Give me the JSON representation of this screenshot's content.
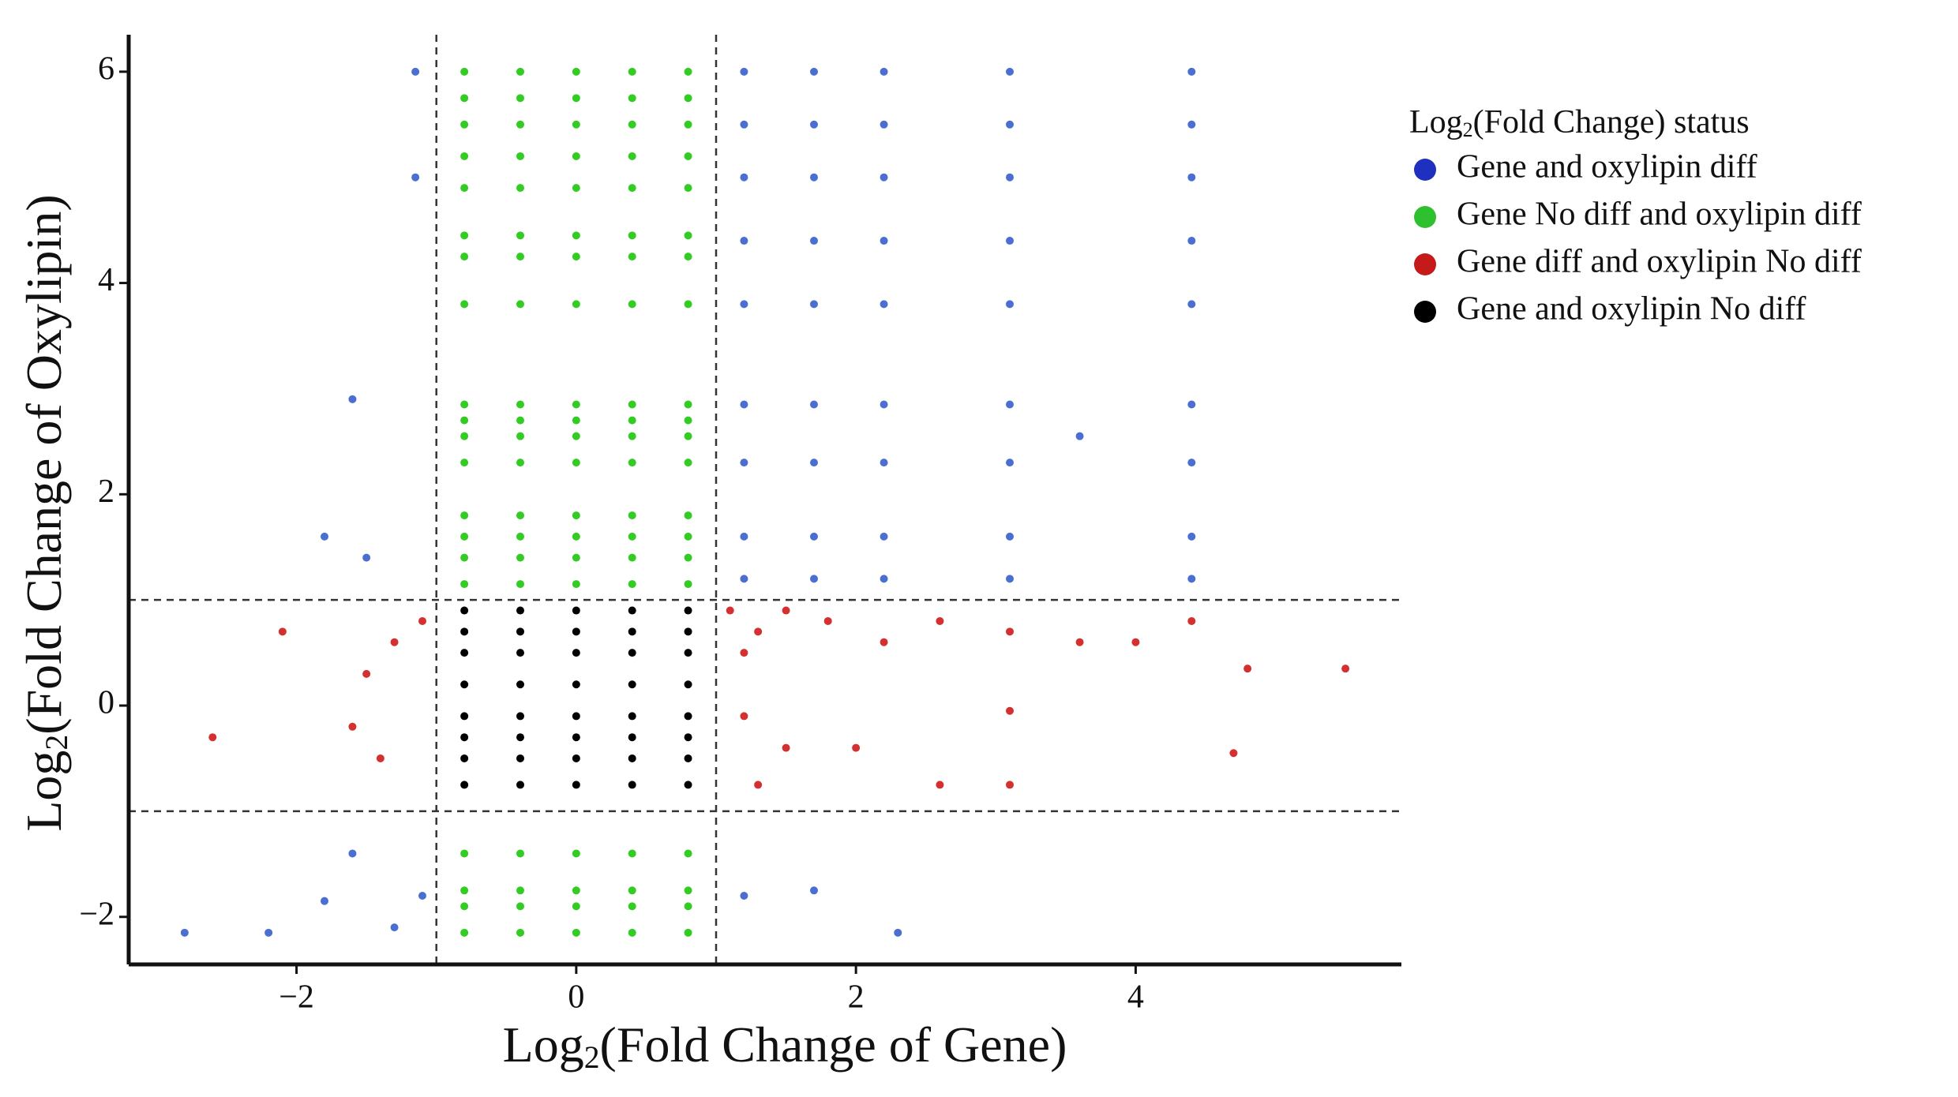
{
  "chart_data": {
    "type": "scatter",
    "xlabel": {
      "base": "Log",
      "sub": "2",
      "rest": "(Fold Change of Gene)"
    },
    "ylabel": {
      "base": "Log",
      "sub": "2",
      "rest": "(Fold Change of Oxylipin)"
    },
    "legend_title": {
      "base": "Log",
      "sub": "2",
      "rest": "(Fold Change) status"
    },
    "legend": "right",
    "grid": false,
    "xlim": [
      -3.2,
      5.9
    ],
    "ylim": [
      -2.45,
      6.35
    ],
    "xticks": [
      {
        "value": -2,
        "label": "−2"
      },
      0,
      2,
      4
    ],
    "yticks": [
      {
        "value": -2,
        "label": "−2"
      },
      0,
      2,
      4,
      6
    ],
    "reference_lines": {
      "x": [
        -1,
        1
      ],
      "y": [
        -1,
        1
      ]
    },
    "series": [
      {
        "name": "Gene and oxylipin diff",
        "color": "#1f2fbf",
        "point_color": "#4a6fd0",
        "x": [
          1.2,
          1.7,
          2.2,
          3.1,
          4.4,
          1.2,
          1.7,
          2.2,
          3.1,
          4.4,
          1.2,
          1.7,
          2.2,
          3.1,
          4.4,
          1.2,
          1.7,
          2.2,
          3.1,
          4.4,
          1.2,
          1.7,
          2.2,
          3.1,
          4.4,
          1.2,
          1.7,
          2.2,
          3.1,
          4.4,
          1.2,
          1.7,
          2.2,
          3.1,
          4.4,
          1.2,
          1.7,
          2.2,
          3.1,
          4.4,
          1.2,
          1.7,
          2.2,
          3.1,
          4.4,
          -1.15,
          -1.15,
          -1.6,
          -1.8,
          -1.5,
          -1.6,
          -2.8,
          -2.2,
          -1.8,
          -1.3,
          -1.1,
          1.2,
          1.7,
          2.3,
          3.6
        ],
        "y": [
          6,
          6,
          6,
          6,
          6,
          5.5,
          5.5,
          5.5,
          5.5,
          5.5,
          5,
          5,
          5,
          5,
          5,
          4.4,
          4.4,
          4.4,
          4.4,
          4.4,
          3.8,
          3.8,
          3.8,
          3.8,
          3.8,
          2.85,
          2.85,
          2.85,
          2.85,
          2.85,
          2.3,
          2.3,
          2.3,
          2.3,
          2.3,
          1.6,
          1.6,
          1.6,
          1.6,
          1.6,
          1.2,
          1.2,
          1.2,
          1.2,
          1.2,
          6,
          5,
          2.9,
          1.6,
          1.4,
          -1.4,
          -2.15,
          -2.15,
          -1.85,
          -2.1,
          -1.8,
          -1.8,
          -1.75,
          -2.15,
          2.55
        ]
      },
      {
        "name": "Gene No diff and oxylipin diff",
        "color": "#2fc02f",
        "point_color": "#33cc22",
        "x": [
          -0.8,
          -0.4,
          0,
          0.4,
          0.8,
          -0.8,
          -0.4,
          0,
          0.4,
          0.8,
          -0.8,
          -0.4,
          0,
          0.4,
          0.8,
          -0.8,
          -0.4,
          0,
          0.4,
          0.8,
          -0.8,
          -0.4,
          0,
          0.4,
          0.8,
          -0.8,
          -0.4,
          0,
          0.4,
          0.8,
          -0.8,
          -0.4,
          0,
          0.4,
          0.8,
          -0.8,
          -0.4,
          0,
          0.4,
          0.8,
          -0.8,
          -0.4,
          0,
          0.4,
          0.8,
          -0.8,
          -0.4,
          0,
          0.4,
          0.8,
          -0.8,
          -0.4,
          0,
          0.4,
          0.8,
          -0.8,
          -0.4,
          0,
          0.4,
          0.8,
          -0.8,
          -0.4,
          0,
          0.4,
          0.8,
          -0.8,
          -0.4,
          0,
          0.4,
          0.8,
          -0.8,
          -0.4,
          0,
          0.4,
          0.8,
          -0.8,
          -0.4,
          0,
          0.4,
          0.8,
          -0.8,
          -0.4,
          0,
          0.4,
          0.8,
          -0.8,
          -0.4,
          0,
          0.4,
          0.8,
          -0.8,
          -0.4,
          0,
          0.4,
          0.8,
          -0.8,
          -0.4,
          0,
          0.4,
          0.8
        ],
        "y": [
          6,
          6,
          6,
          6,
          6,
          5.75,
          5.75,
          5.75,
          5.75,
          5.75,
          5.5,
          5.5,
          5.5,
          5.5,
          5.5,
          5.2,
          5.2,
          5.2,
          5.2,
          5.2,
          4.9,
          4.9,
          4.9,
          4.9,
          4.9,
          4.45,
          4.45,
          4.45,
          4.45,
          4.45,
          4.25,
          4.25,
          4.25,
          4.25,
          4.25,
          3.8,
          3.8,
          3.8,
          3.8,
          3.8,
          2.85,
          2.85,
          2.85,
          2.85,
          2.85,
          2.7,
          2.7,
          2.7,
          2.7,
          2.7,
          2.55,
          2.55,
          2.55,
          2.55,
          2.55,
          2.3,
          2.3,
          2.3,
          2.3,
          2.3,
          1.8,
          1.8,
          1.8,
          1.8,
          1.8,
          1.6,
          1.6,
          1.6,
          1.6,
          1.6,
          1.4,
          1.4,
          1.4,
          1.4,
          1.4,
          1.15,
          1.15,
          1.15,
          1.15,
          1.15,
          -1.4,
          -1.4,
          -1.4,
          -1.4,
          -1.4,
          -1.75,
          -1.75,
          -1.75,
          -1.75,
          -1.75,
          -1.9,
          -1.9,
          -1.9,
          -1.9,
          -1.9,
          -2.15,
          -2.15,
          -2.15,
          -2.15,
          -2.15
        ]
      },
      {
        "name": "Gene diff and oxylipin No diff",
        "color": "#c41a1a",
        "point_color": "#d43030",
        "x": [
          1.1,
          1.3,
          1.5,
          1.2,
          1.8,
          2.2,
          2.6,
          3.1,
          3.6,
          4.0,
          4.4,
          4.8,
          5.5,
          4.7,
          3.1,
          1.2,
          1.5,
          2.0,
          1.3,
          2.6,
          3.1,
          -1.3,
          -1.5,
          -2.1,
          -2.6,
          -1.4,
          -1.6,
          -1.1
        ],
        "y": [
          0.9,
          0.7,
          0.9,
          0.5,
          0.8,
          0.6,
          0.8,
          0.7,
          0.6,
          0.6,
          0.8,
          0.35,
          0.35,
          -0.45,
          -0.05,
          -0.1,
          -0.4,
          -0.4,
          -0.75,
          -0.75,
          -0.75,
          0.6,
          0.3,
          0.7,
          -0.3,
          -0.5,
          -0.2,
          0.8
        ]
      },
      {
        "name": "Gene and oxylipin No diff",
        "color": "#000000",
        "point_color": "#000000",
        "x": [
          -0.8,
          -0.4,
          0,
          0.4,
          0.8,
          -0.8,
          -0.4,
          0,
          0.4,
          0.8,
          -0.8,
          -0.4,
          0,
          0.4,
          0.8,
          -0.8,
          -0.4,
          0,
          0.4,
          0.8,
          -0.8,
          -0.4,
          0,
          0.4,
          0.8,
          -0.8,
          -0.4,
          0,
          0.4,
          0.8,
          -0.8,
          -0.4,
          0,
          0.4,
          0.8,
          -0.8,
          -0.4,
          0,
          0.4,
          0.8
        ],
        "y": [
          0.9,
          0.9,
          0.9,
          0.9,
          0.9,
          0.7,
          0.7,
          0.7,
          0.7,
          0.7,
          0.5,
          0.5,
          0.5,
          0.5,
          0.5,
          0.2,
          0.2,
          0.2,
          0.2,
          0.2,
          -0.1,
          -0.1,
          -0.1,
          -0.1,
          -0.1,
          -0.3,
          -0.3,
          -0.3,
          -0.3,
          -0.3,
          -0.5,
          -0.5,
          -0.5,
          -0.5,
          -0.5,
          -0.75,
          -0.75,
          -0.75,
          -0.75,
          -0.75
        ]
      }
    ]
  }
}
